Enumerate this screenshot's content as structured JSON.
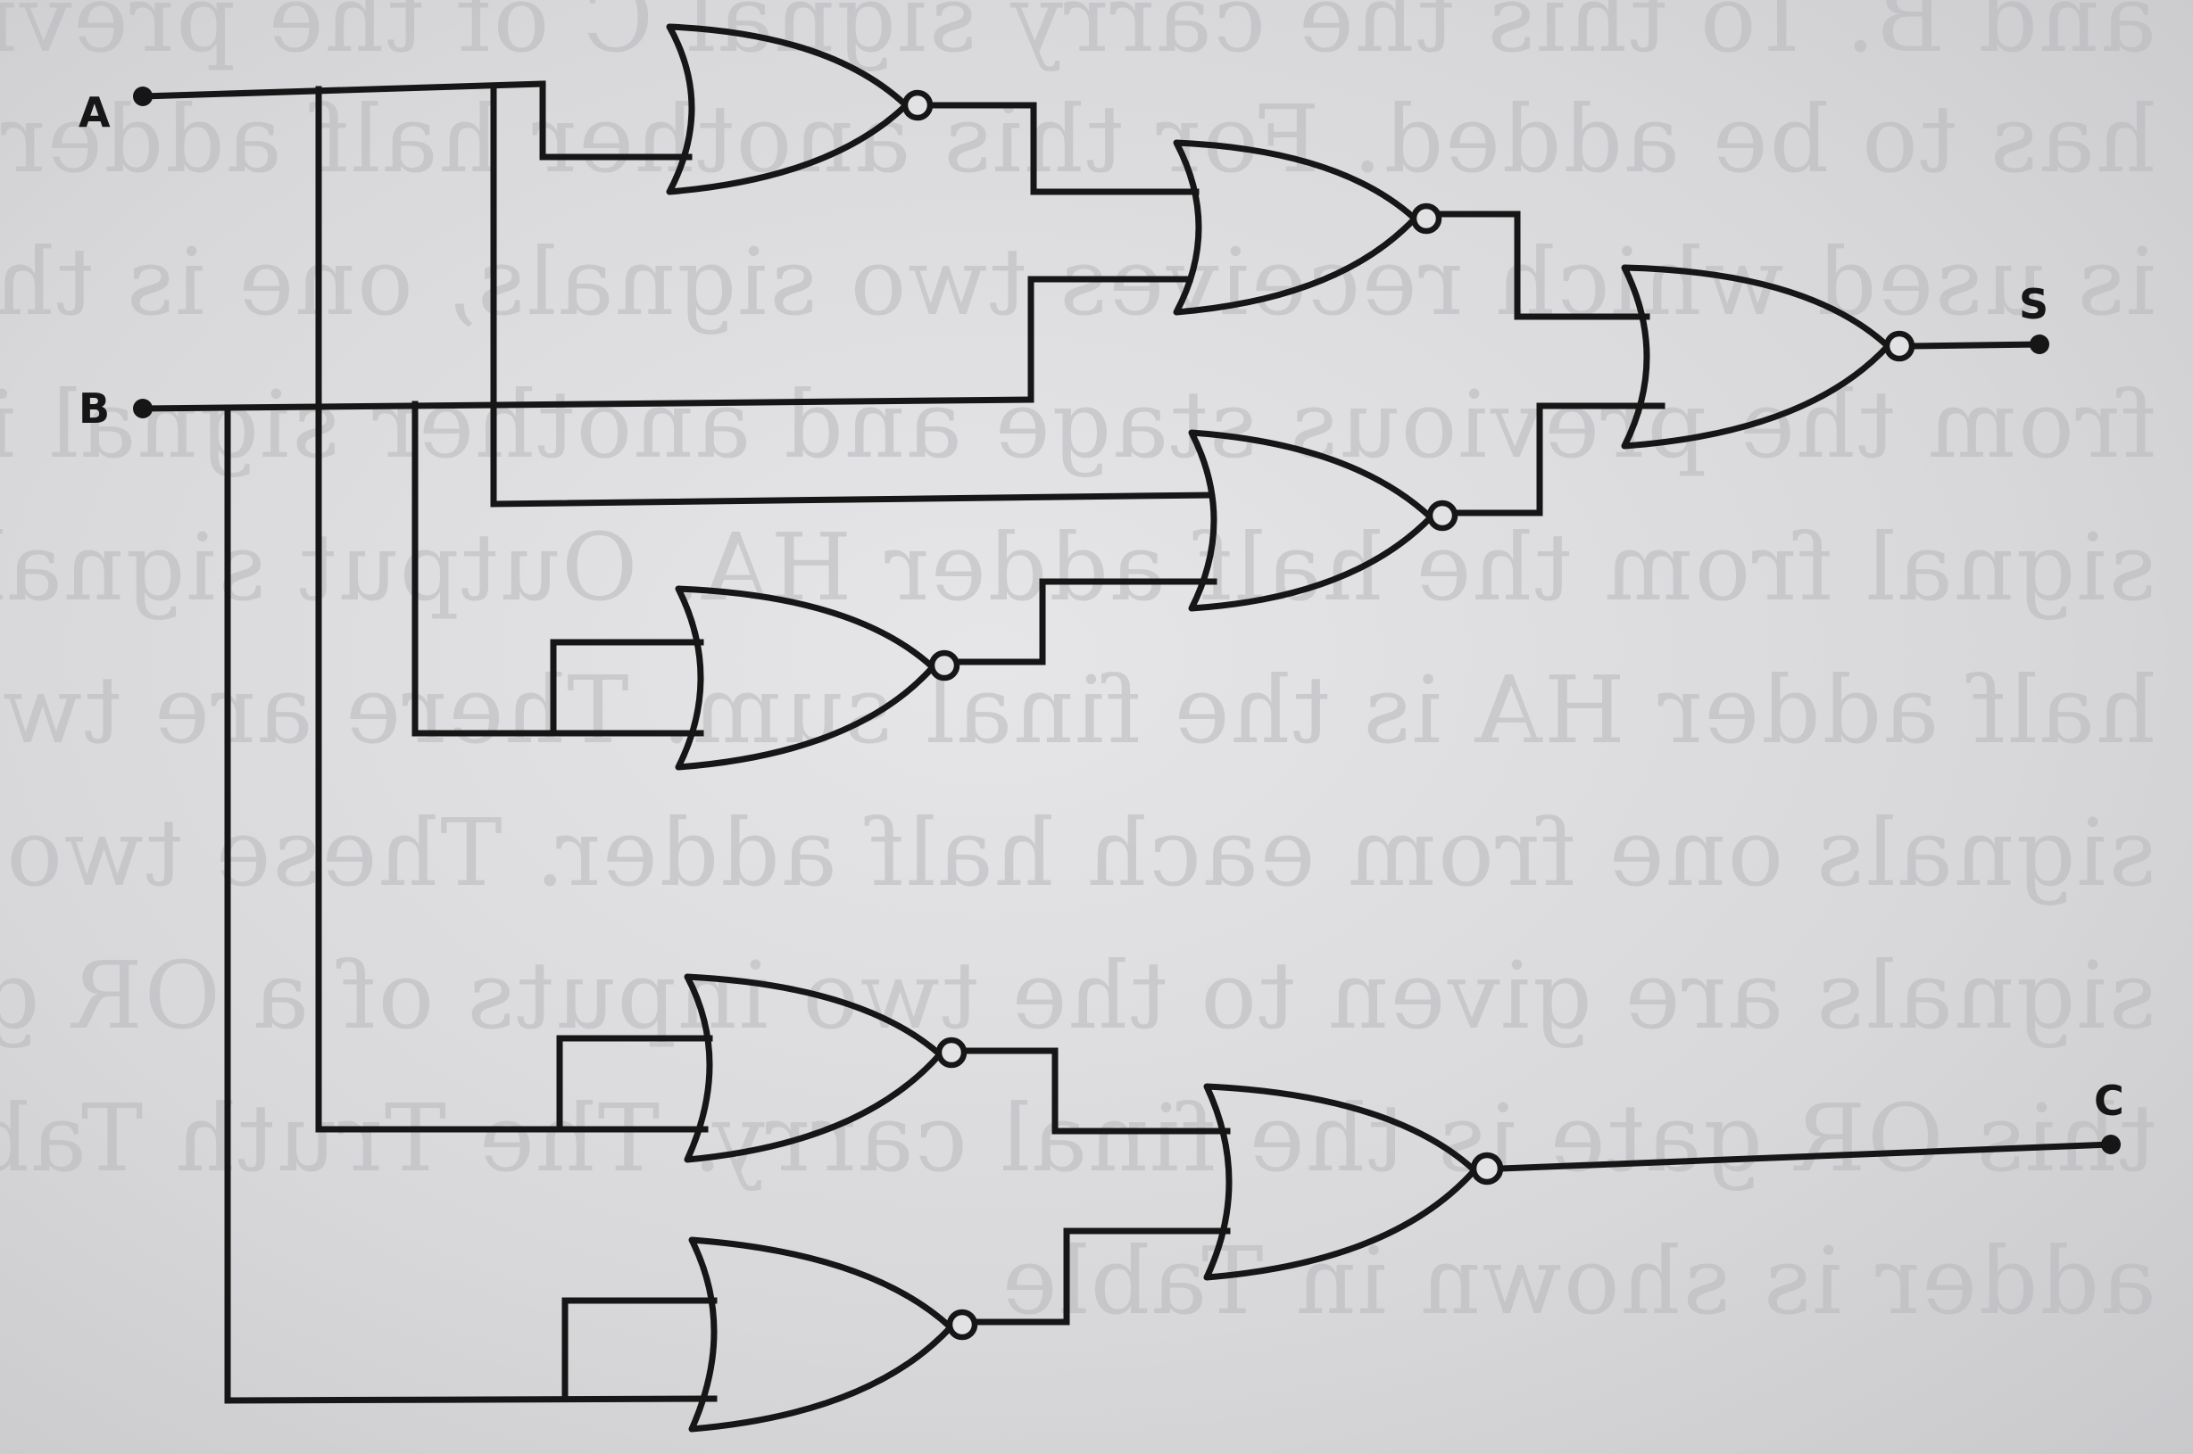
{
  "diagram": {
    "type": "logic-circuit",
    "gate_type": "NOR",
    "inputs": [
      {
        "id": "A",
        "label": "A"
      },
      {
        "id": "B",
        "label": "B"
      }
    ],
    "outputs": [
      {
        "id": "S",
        "label": "S"
      },
      {
        "id": "C",
        "label": "C"
      }
    ],
    "gates": [
      {
        "id": "g1",
        "type": "NOR",
        "inputs": [
          "A",
          "A"
        ],
        "output": "n1"
      },
      {
        "id": "g2",
        "type": "NOR",
        "inputs": [
          "n1",
          "B"
        ],
        "output": "n2"
      },
      {
        "id": "g3",
        "type": "NOR",
        "inputs": [
          "n2",
          "n4"
        ],
        "output": "S"
      },
      {
        "id": "g4",
        "type": "NOR",
        "inputs": [
          "A",
          "n5"
        ],
        "output": "n4"
      },
      {
        "id": "g5",
        "type": "NOR",
        "inputs": [
          "B",
          "B"
        ],
        "output": "n5"
      },
      {
        "id": "g6",
        "type": "NOR",
        "inputs": [
          "A",
          "A"
        ],
        "output": "n6"
      },
      {
        "id": "g7",
        "type": "NOR",
        "inputs": [
          "B",
          "B"
        ],
        "output": "n7"
      },
      {
        "id": "g8",
        "type": "NOR",
        "inputs": [
          "n6",
          "n7"
        ],
        "output": "C"
      }
    ],
    "colors": {
      "ink": "#161616",
      "paper": "#dcdcde",
      "bleed_text": "#b9b9bc"
    }
  },
  "bleed_through_text": [
    "and B. To this the carry signal C of the previous stage",
    "has to be added. For this another half adder HA",
    "is used which receives two signals, one is the carry",
    "from the previous stage and another signal is the sum",
    "signal from the half adder HA. Output signal from",
    "half adder HA is the final sum. There are two carry",
    "signals one from each half adder. These two carry",
    "signals are given to the two inputs of a OR gate. Output of",
    "this OR gate is the final carry. The Truth Table of full",
    "adder is shown in Table"
  ]
}
